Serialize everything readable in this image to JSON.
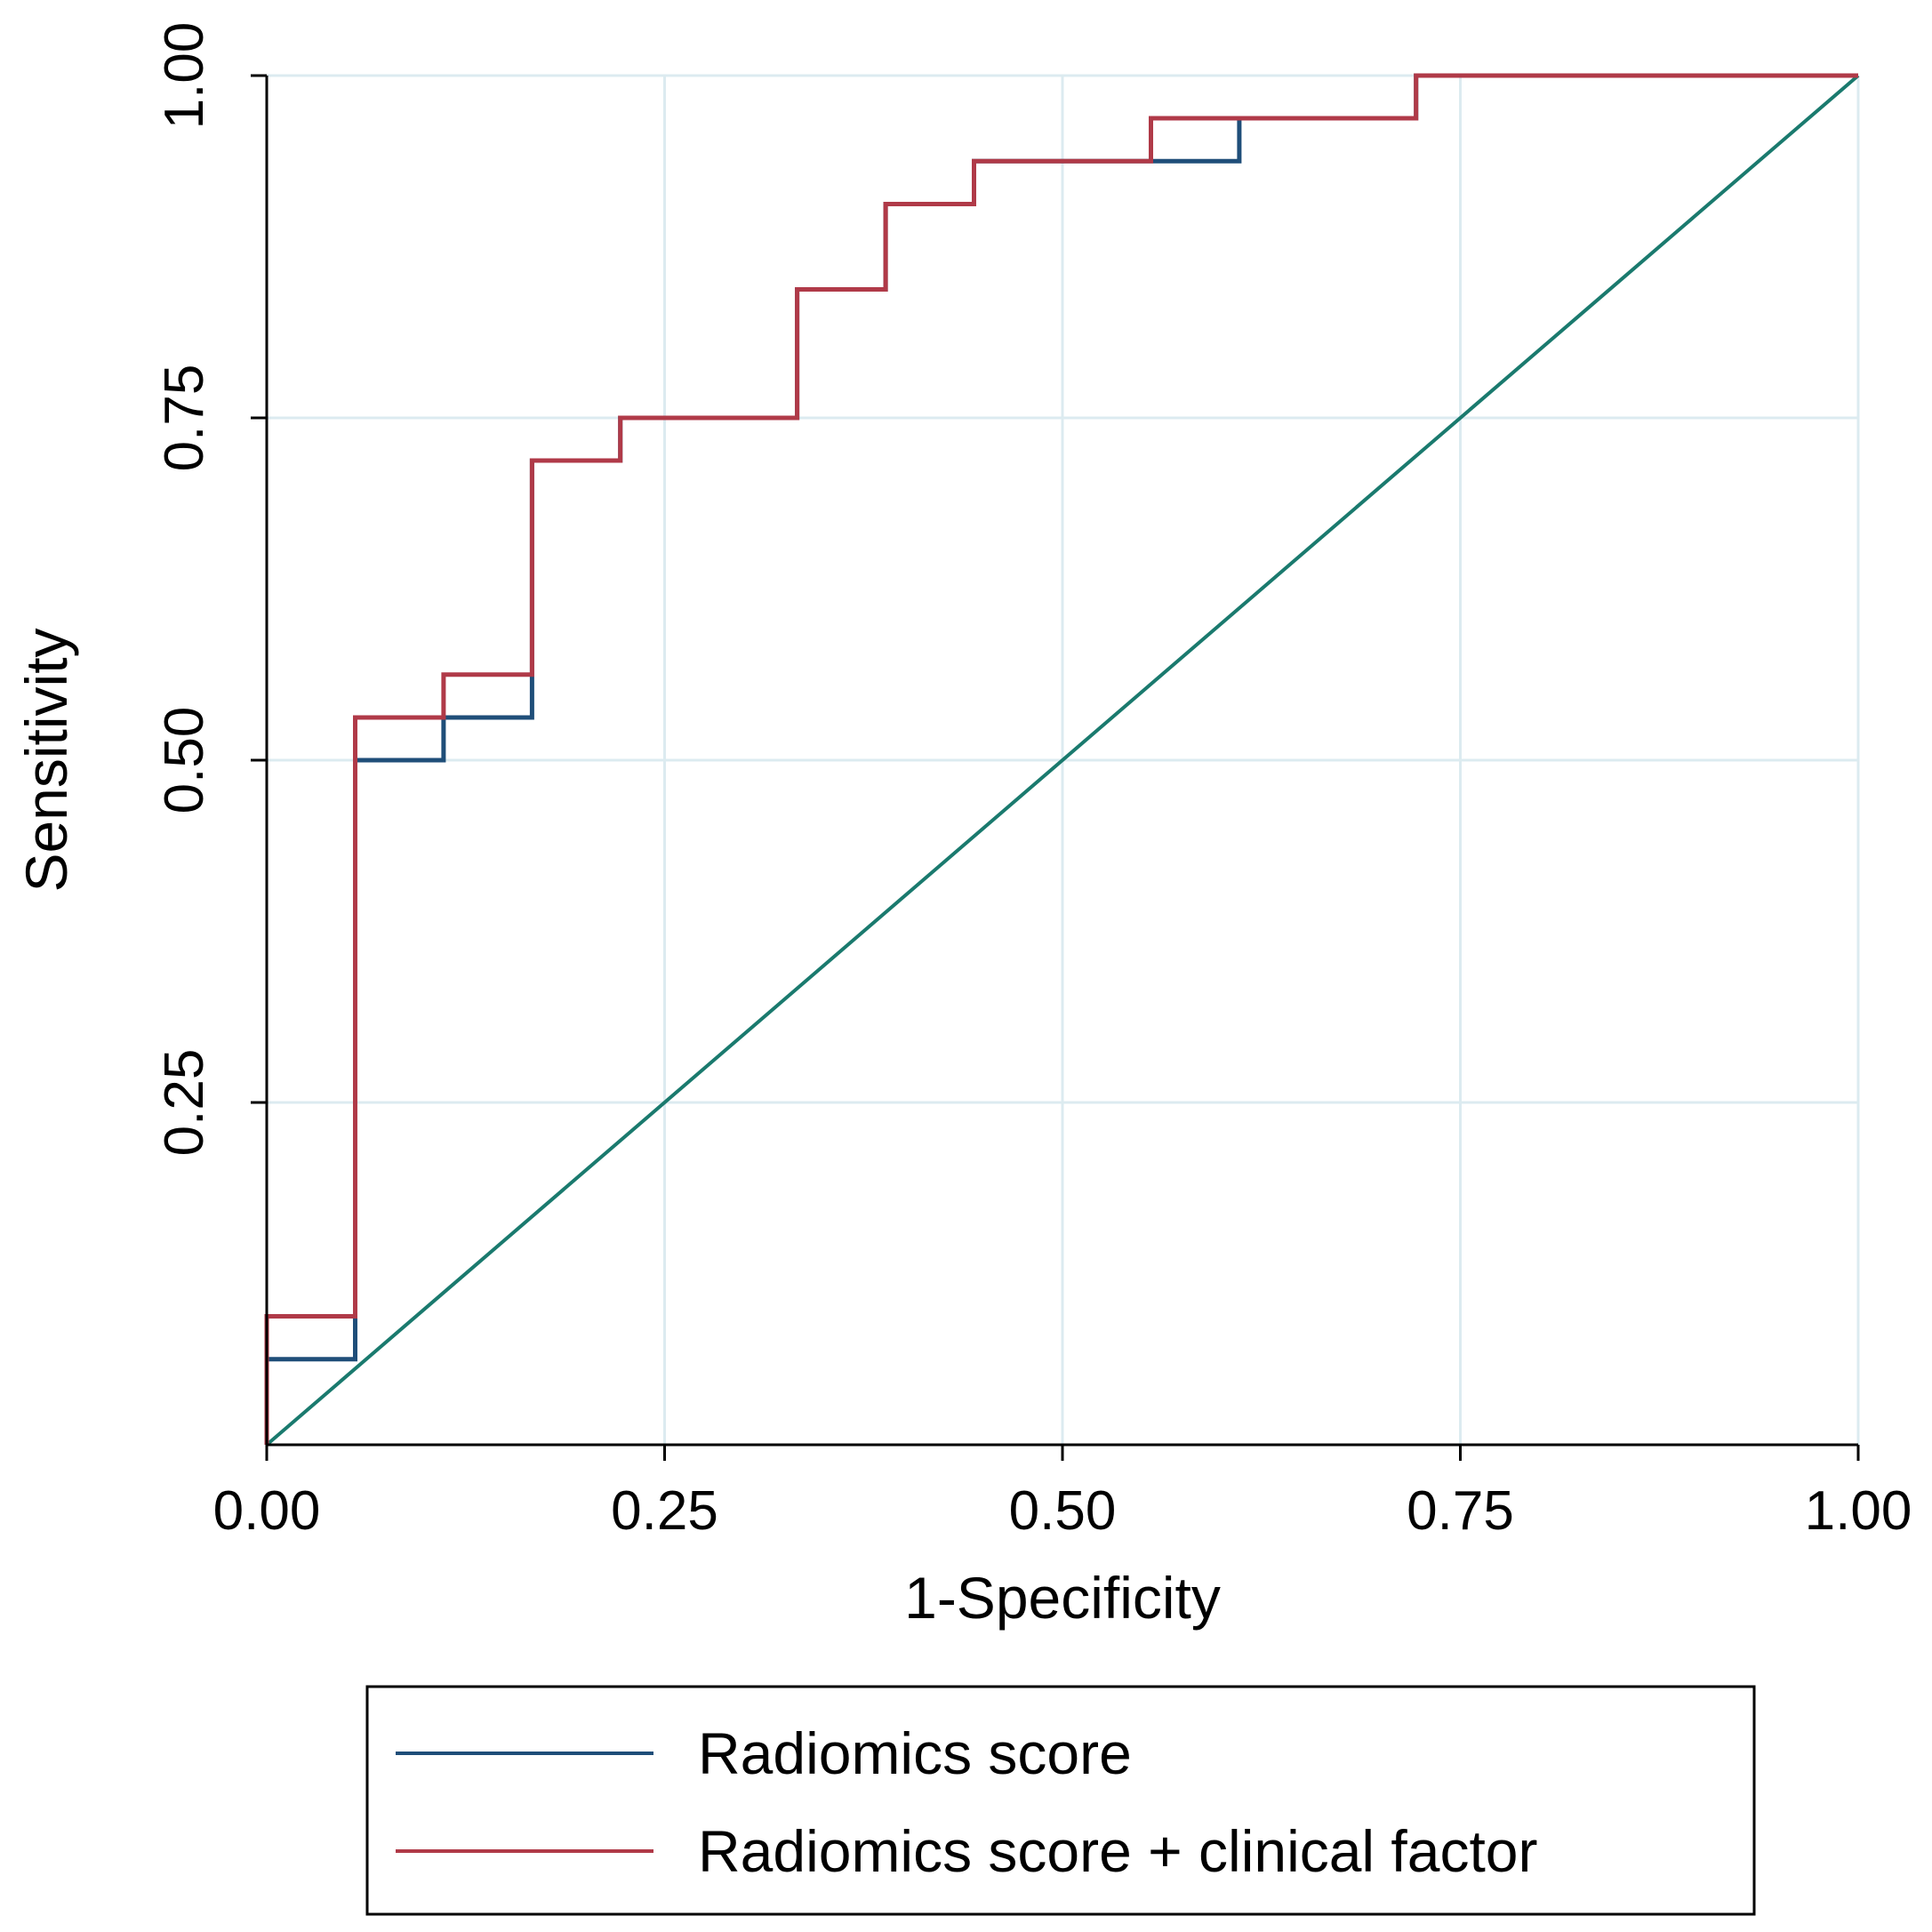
{
  "chart_data": {
    "type": "line",
    "title": "",
    "xlabel": "1-Specificity",
    "ylabel": "Sensitivity",
    "xlim": [
      0,
      1
    ],
    "ylim": [
      0,
      1
    ],
    "grid": true,
    "x_ticks": [
      0,
      0.25,
      0.5,
      0.75,
      1
    ],
    "x_tick_labels": [
      "0.00",
      "0.25",
      "0.50",
      "0.75",
      "1.00"
    ],
    "y_ticks": [
      0.25,
      0.5,
      0.75,
      1
    ],
    "y_tick_labels": [
      "0.25",
      "0.50",
      "0.75",
      "1.00"
    ],
    "legend_position": "bottom",
    "series": [
      {
        "name": "Radiomics score",
        "color": "#1f4e79",
        "x": [
          0,
          0,
          0.0556,
          0.0556,
          0.1111,
          0.1111,
          0.1667,
          0.1667,
          0.2222,
          0.2222,
          0.3333,
          0.3333,
          0.3889,
          0.3889,
          0.4444,
          0.4444,
          0.6111,
          0.6111,
          0.7222,
          0.7222,
          1.0
        ],
        "y": [
          0,
          0.0625,
          0.0625,
          0.5,
          0.5,
          0.5312,
          0.5312,
          0.7188,
          0.7188,
          0.75,
          0.75,
          0.8438,
          0.8438,
          0.9062,
          0.9062,
          0.9375,
          0.9375,
          0.9688,
          0.9688,
          1.0,
          1.0
        ]
      },
      {
        "name": "Radiomics score + clinical factor",
        "color": "#b03a48",
        "x": [
          0,
          0,
          0.0556,
          0.0556,
          0.1111,
          0.1111,
          0.1667,
          0.1667,
          0.2222,
          0.2222,
          0.3333,
          0.3333,
          0.3889,
          0.3889,
          0.4444,
          0.4444,
          0.5556,
          0.5556,
          0.7222,
          0.7222,
          1.0
        ],
        "y": [
          0,
          0.0938,
          0.0938,
          0.5312,
          0.5312,
          0.5625,
          0.5625,
          0.7188,
          0.7188,
          0.75,
          0.75,
          0.8438,
          0.8438,
          0.9062,
          0.9062,
          0.9375,
          0.9375,
          0.9688,
          0.9688,
          1.0,
          1.0
        ]
      }
    ],
    "reference_line": {
      "name": "reference",
      "color": "#1a7a6e",
      "x": [
        0,
        1
      ],
      "y": [
        0,
        1
      ]
    }
  }
}
